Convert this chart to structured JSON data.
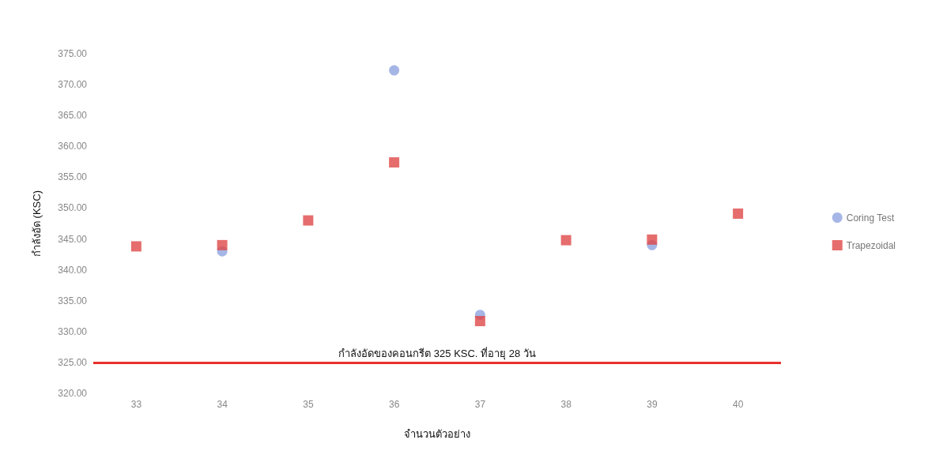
{
  "chart_data": {
    "type": "scatter",
    "xlabel": "จำนวนตัวอย่าง",
    "ylabel": "กำลังอัด (KSC)",
    "categories": [
      "33",
      "34",
      "35",
      "36",
      "37",
      "38",
      "39",
      "40"
    ],
    "series": [
      {
        "name": "Coring Test",
        "color": "#8fa4e0",
        "marker": "circle",
        "values": [
          null,
          343.0,
          null,
          372.3,
          332.7,
          null,
          344.0,
          null
        ]
      },
      {
        "name": "Trapezoidal",
        "color": "#e04848",
        "marker": "square",
        "values": [
          343.8,
          344.0,
          348.0,
          357.4,
          331.7,
          344.8,
          344.9,
          349.1
        ]
      }
    ],
    "ylim": [
      320,
      375
    ],
    "yticks": [
      {
        "value": 320,
        "label": "320.00"
      },
      {
        "value": 325,
        "label": "325.00"
      },
      {
        "value": 330,
        "label": "330.00"
      },
      {
        "value": 335,
        "label": "335.00"
      },
      {
        "value": 340,
        "label": "340.00"
      },
      {
        "value": 345,
        "label": "345.00"
      },
      {
        "value": 350,
        "label": "350.00"
      },
      {
        "value": 355,
        "label": "355.00"
      },
      {
        "value": 360,
        "label": "360.00"
      },
      {
        "value": 365,
        "label": "365.00"
      },
      {
        "value": 370,
        "label": "370.00"
      },
      {
        "value": 375,
        "label": "375.00"
      }
    ],
    "ref_lines": [
      {
        "axis": "y",
        "value": 325,
        "label": "กำลังอัดของคอนกรีต 325 KSC. ที่อายุ 28 วัน",
        "color": "#e8302a"
      }
    ],
    "grid": false,
    "legend": "right"
  }
}
